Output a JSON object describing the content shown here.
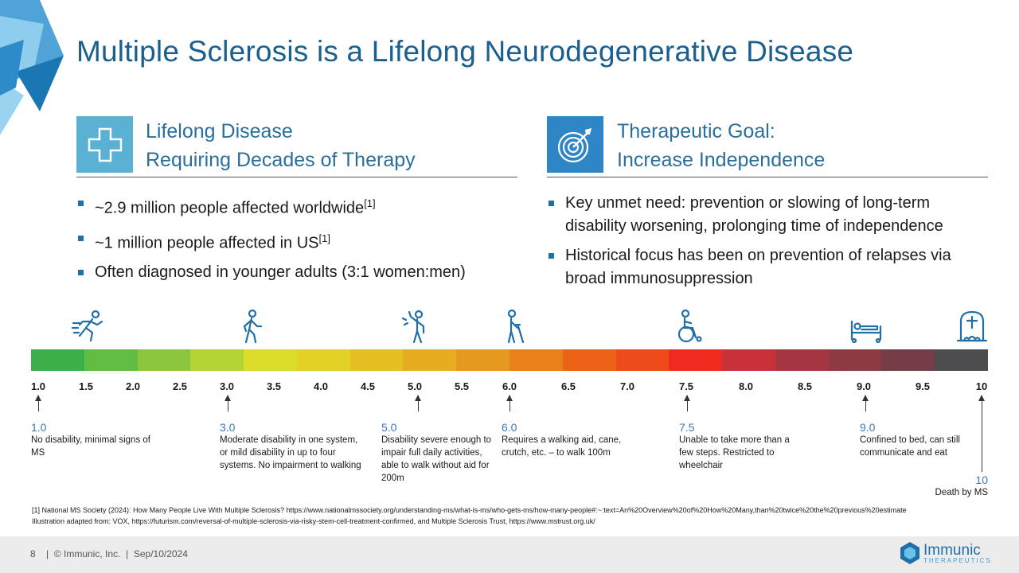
{
  "title": "Multiple Sclerosis is a Lifelong Neurodegenerative Disease",
  "left_section": {
    "icon": "medical-cross-icon",
    "heading_line1": "Lifelong Disease",
    "heading_line2": "Requiring Decades of Therapy",
    "bullets": [
      {
        "text": "~2.9 million people affected worldwide",
        "ref": "[1]"
      },
      {
        "text": "~1 million people affected in US",
        "ref": "[1]"
      },
      {
        "text": "Often diagnosed in younger adults (3:1 women:men)",
        "ref": ""
      }
    ]
  },
  "right_section": {
    "icon": "target-icon",
    "heading_line1": "Therapeutic Goal:",
    "heading_line2": "Increase Independence",
    "bullets": [
      {
        "text": "Key unmet need: prevention or slowing of long-term disability worsening, prolonging time of independence"
      },
      {
        "text": "Historical focus has been on prevention of relapses via broad immunosuppression"
      }
    ]
  },
  "scale": {
    "colors": [
      "#3bb04a",
      "#62bd45",
      "#8cc63f",
      "#b4d334",
      "#dcdc2a",
      "#e3d225",
      "#e6c022",
      "#e6ad20",
      "#e59a1f",
      "#e8811a",
      "#ec6318",
      "#ef4a1c",
      "#f12a1f",
      "#c8303a",
      "#a53540",
      "#8d3a43",
      "#753d45",
      "#4d4d4f"
    ],
    "ticks": [
      "1.0",
      "1.5",
      "2.0",
      "2.5",
      "3.0",
      "3.5",
      "4.0",
      "4.5",
      "5.0",
      "5.5",
      "6.0",
      "6.5",
      "7.0",
      "7.5",
      "8.0",
      "8.5",
      "9.0",
      "9.5",
      "10"
    ]
  },
  "stage_icons": [
    "running-person-icon",
    "walking-person-icon",
    "unsteady-person-icon",
    "walking-aid-icon",
    "wheelchair-icon",
    "bed-icon",
    "tombstone-icon"
  ],
  "stages": [
    {
      "value": "1.0",
      "text": "No disability, minimal signs of MS"
    },
    {
      "value": "3.0",
      "text": "Moderate disability in one system, or mild disability in up to four systems. No impairment to walking"
    },
    {
      "value": "5.0",
      "text": "Disability severe enough to impair full daily activities, able to walk without aid for 200m"
    },
    {
      "value": "6.0",
      "text": "Requires a walking aid, cane, crutch, etc. – to walk 100m"
    },
    {
      "value": "7.5",
      "text": "Unable to take more than a few steps. Restricted to wheelchair"
    },
    {
      "value": "9.0",
      "text": "Confined to bed, can still communicate and eat"
    },
    {
      "value": "10",
      "text": "Death by MS"
    }
  ],
  "footnotes": [
    "[1] National MS Society (2024): How Many People Live With Multiple Sclerosis? https://www.nationalmssociety.org/understanding-ms/what-is-ms/who-gets-ms/how-many-people#:~:text=An%20Overview%20of%20How%20Many,than%20twice%20the%20previous%20estimate",
    "Illustration adapted from: VOX, https://futurism.com/reversal-of-multiple-sclerosis-via-risky-stem-cell-treatment-confirmed, and Multiple Sclerosis Trust, https://www.mstrust.org.uk/"
  ],
  "footer": {
    "page": "8",
    "copyright": "© Immunic, Inc.",
    "date": "Sep/10/2024",
    "logo_name": "Immunic",
    "logo_sub": "THERAPEUTICS"
  }
}
